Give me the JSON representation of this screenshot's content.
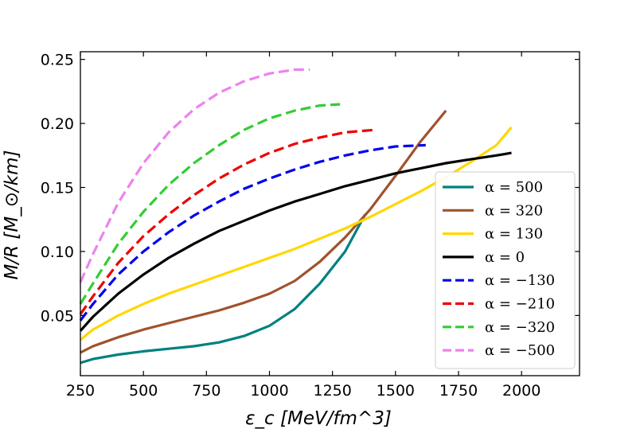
{
  "chart_data": {
    "type": "line",
    "title": "",
    "xlabel": "ε_c [MeV/fm^3]",
    "ylabel": "M/R [M_⊙/km]",
    "xlim": [
      250,
      2230
    ],
    "ylim": [
      0.003,
      0.256
    ],
    "xticks": [
      250,
      500,
      750,
      1000,
      1250,
      1500,
      1750,
      2000
    ],
    "xtick_labels": [
      "250",
      "500",
      "750",
      "1000",
      "1250",
      "1500",
      "1750",
      "2000"
    ],
    "yticks": [
      0.05,
      0.1,
      0.15,
      0.2,
      0.25
    ],
    "ytick_labels": [
      "0.05",
      "0.10",
      "0.15",
      "0.20",
      "0.25"
    ],
    "grid": false,
    "legend_position": "lower-right",
    "series": [
      {
        "name": "α = 500",
        "color": "#008080",
        "style": "solid",
        "x": [
          250,
          300,
          400,
          500,
          600,
          700,
          800,
          900,
          1000,
          1100,
          1200,
          1300,
          1380
        ],
        "y": [
          0.013,
          0.016,
          0.0195,
          0.022,
          0.024,
          0.026,
          0.029,
          0.034,
          0.042,
          0.055,
          0.075,
          0.1,
          0.129
        ]
      },
      {
        "name": "α = 320",
        "color": "#A0522D",
        "style": "solid",
        "x": [
          250,
          300,
          400,
          500,
          600,
          700,
          800,
          900,
          1000,
          1100,
          1200,
          1300,
          1400,
          1500,
          1600,
          1700
        ],
        "y": [
          0.021,
          0.026,
          0.033,
          0.039,
          0.044,
          0.049,
          0.054,
          0.06,
          0.067,
          0.077,
          0.092,
          0.111,
          0.133,
          0.159,
          0.186,
          0.21
        ]
      },
      {
        "name": "α = 130",
        "color": "#FFD700",
        "style": "solid",
        "x": [
          250,
          300,
          400,
          500,
          600,
          700,
          800,
          900,
          1000,
          1100,
          1200,
          1300,
          1400,
          1500,
          1600,
          1700,
          1800,
          1900,
          1960
        ],
        "y": [
          0.031,
          0.039,
          0.05,
          0.059,
          0.067,
          0.074,
          0.081,
          0.088,
          0.095,
          0.102,
          0.11,
          0.118,
          0.127,
          0.137,
          0.147,
          0.158,
          0.17,
          0.183,
          0.197
        ]
      },
      {
        "name": "α = 0",
        "color": "#000000",
        "style": "solid",
        "x": [
          250,
          300,
          400,
          500,
          600,
          700,
          800,
          900,
          1000,
          1100,
          1200,
          1300,
          1400,
          1500,
          1600,
          1700,
          1800,
          1900,
          1960
        ],
        "y": [
          0.038,
          0.049,
          0.067,
          0.082,
          0.095,
          0.106,
          0.116,
          0.124,
          0.132,
          0.139,
          0.145,
          0.151,
          0.156,
          0.161,
          0.165,
          0.169,
          0.172,
          0.175,
          0.177
        ]
      },
      {
        "name": "α = −130",
        "color": "#0000EE",
        "style": "dashed",
        "x": [
          250,
          300,
          400,
          500,
          600,
          700,
          800,
          900,
          1000,
          1100,
          1200,
          1300,
          1400,
          1500,
          1620
        ],
        "y": [
          0.046,
          0.059,
          0.082,
          0.1,
          0.115,
          0.128,
          0.139,
          0.149,
          0.157,
          0.164,
          0.17,
          0.175,
          0.179,
          0.182,
          0.183
        ]
      },
      {
        "name": "α = −210",
        "color": "#EE0000",
        "style": "dashed",
        "x": [
          250,
          300,
          400,
          500,
          600,
          700,
          800,
          900,
          1000,
          1100,
          1200,
          1300,
          1420
        ],
        "y": [
          0.051,
          0.065,
          0.091,
          0.112,
          0.129,
          0.144,
          0.157,
          0.168,
          0.177,
          0.184,
          0.189,
          0.193,
          0.195
        ]
      },
      {
        "name": "α = −320",
        "color": "#33CC33",
        "style": "dashed",
        "x": [
          250,
          300,
          400,
          500,
          600,
          700,
          800,
          900,
          1000,
          1100,
          1200,
          1280
        ],
        "y": [
          0.059,
          0.075,
          0.106,
          0.131,
          0.152,
          0.169,
          0.183,
          0.195,
          0.204,
          0.21,
          0.214,
          0.215
        ]
      },
      {
        "name": "α = −500",
        "color": "#EE82EE",
        "style": "dashed",
        "x": [
          250,
          300,
          400,
          500,
          600,
          700,
          800,
          900,
          1000,
          1100,
          1160
        ],
        "y": [
          0.076,
          0.098,
          0.138,
          0.169,
          0.193,
          0.211,
          0.224,
          0.233,
          0.239,
          0.242,
          0.242
        ]
      }
    ]
  }
}
